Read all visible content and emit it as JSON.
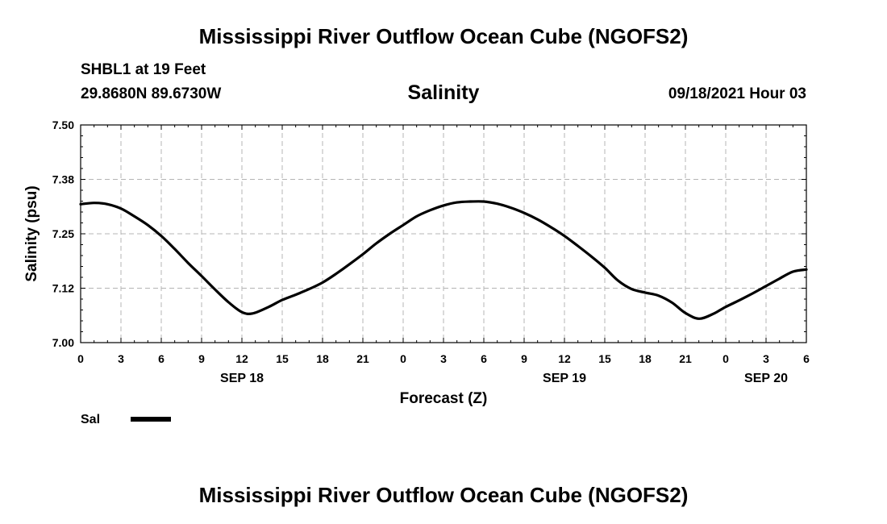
{
  "header": {
    "title": "Mississippi River Outflow Ocean Cube (NGOFS2)",
    "station": "SHBL1 at 19 Feet",
    "coords": "29.8680N  89.6730W",
    "variable": "Salinity",
    "datetime": "09/18/2021 Hour 03"
  },
  "footer": {
    "title": "Mississippi River Outflow Ocean Cube (NGOFS2)"
  },
  "legend": {
    "label": "Sal"
  },
  "chart_data": {
    "type": "line",
    "title": "Salinity",
    "xlabel": "Forecast (Z)",
    "ylabel": "Salinity (psu)",
    "xlim": [
      0,
      54
    ],
    "ylim": [
      7.0,
      7.5
    ],
    "x_ticks": [
      0,
      3,
      6,
      9,
      12,
      15,
      18,
      21,
      24,
      27,
      30,
      33,
      36,
      39,
      42,
      45,
      48,
      51,
      54
    ],
    "x_tick_labels": [
      "0",
      "3",
      "6",
      "9",
      "12",
      "15",
      "18",
      "21",
      "0",
      "3",
      "6",
      "9",
      "12",
      "15",
      "18",
      "21",
      "0",
      "3",
      "6"
    ],
    "date_labels": [
      {
        "x": 12,
        "label": "SEP 18"
      },
      {
        "x": 36,
        "label": "SEP 19"
      },
      {
        "x": 51,
        "label": "SEP 20"
      }
    ],
    "y_ticks": [
      7.0,
      7.125,
      7.25,
      7.375,
      7.5
    ],
    "y_tick_labels": [
      "7.00",
      "7.12",
      "7.25",
      "7.38",
      "7.50"
    ],
    "grid": true,
    "series": [
      {
        "name": "Sal",
        "color": "#000000",
        "x": [
          0,
          1,
          2,
          3,
          4,
          5,
          6,
          7,
          8,
          9,
          10,
          11,
          12,
          12.8,
          14,
          15,
          16,
          17,
          18,
          19,
          20,
          21,
          22,
          23,
          24,
          25,
          26,
          27,
          28,
          29,
          30,
          31,
          32,
          33,
          34,
          35,
          36,
          37,
          38,
          39,
          40,
          41,
          42,
          43,
          44,
          45,
          46,
          47,
          48,
          49,
          50,
          51,
          52,
          53,
          54
        ],
        "values": [
          7.318,
          7.321,
          7.318,
          7.308,
          7.29,
          7.27,
          7.245,
          7.215,
          7.183,
          7.153,
          7.122,
          7.093,
          7.07,
          7.067,
          7.082,
          7.098,
          7.11,
          7.123,
          7.138,
          7.158,
          7.18,
          7.203,
          7.228,
          7.25,
          7.27,
          7.29,
          7.304,
          7.315,
          7.322,
          7.324,
          7.324,
          7.319,
          7.31,
          7.298,
          7.283,
          7.265,
          7.245,
          7.222,
          7.198,
          7.172,
          7.142,
          7.123,
          7.115,
          7.108,
          7.092,
          7.068,
          7.055,
          7.065,
          7.082,
          7.097,
          7.113,
          7.13,
          7.147,
          7.163,
          7.168
        ]
      }
    ]
  }
}
